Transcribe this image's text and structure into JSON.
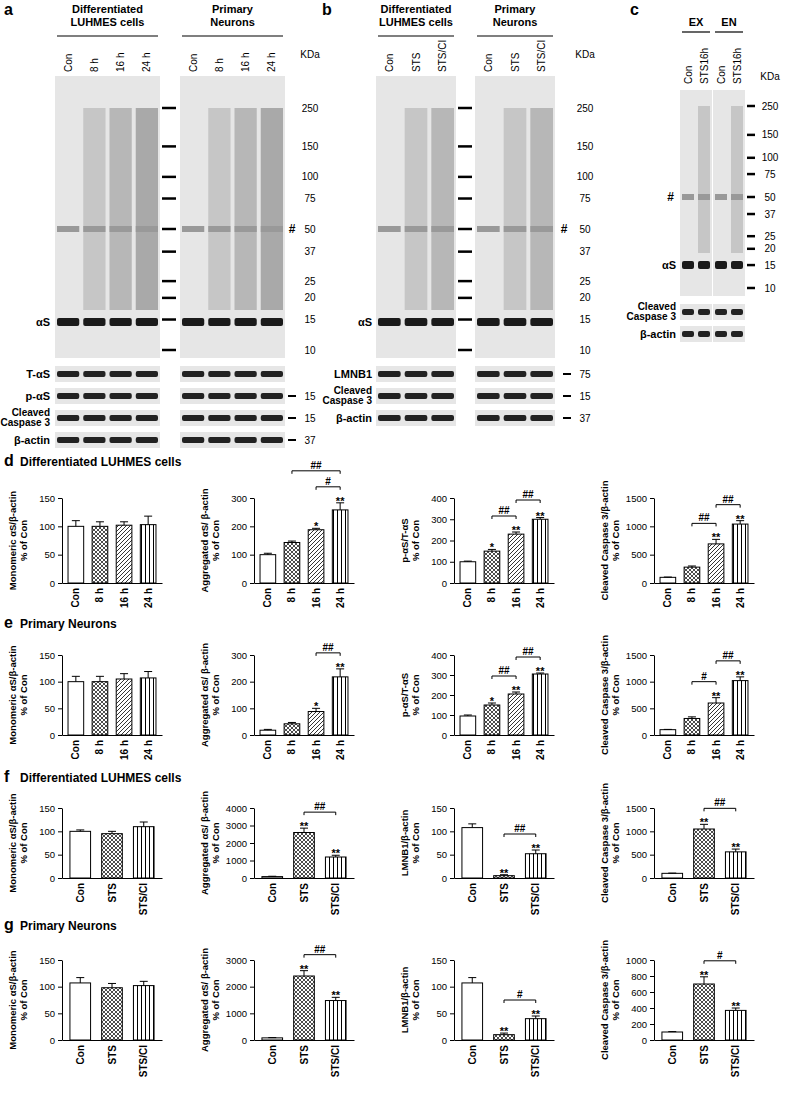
{
  "blots": [
    {
      "label": "a",
      "groups": [
        {
          "title": [
            "Differentiated",
            "LUHMES cells"
          ],
          "lanes": [
            "Con",
            "8 h",
            "16 h",
            "24 h"
          ]
        },
        {
          "title": [
            "Primary",
            "Neurons"
          ],
          "lanes": [
            "Con",
            "8 h",
            "16 h",
            "24 h"
          ]
        }
      ],
      "unit": "KDa",
      "markers": [
        250,
        150,
        100,
        75,
        50,
        37,
        25,
        20,
        15,
        10
      ],
      "hash": "#",
      "band": "αS",
      "strips": [
        {
          "label": [
            "T-αS"
          ]
        },
        {
          "label": [
            "p-αS"
          ],
          "size": 15
        },
        {
          "label": [
            "Cleaved",
            "Caspase 3"
          ],
          "size": 15
        },
        {
          "label": [
            "β-actin"
          ],
          "size": 37
        }
      ]
    },
    {
      "label": "b",
      "groups": [
        {
          "title": [
            "Differentiated",
            "LUHMES cells"
          ],
          "lanes": [
            "Con",
            "STS",
            "STS/CI"
          ]
        },
        {
          "title": [
            "Primary",
            "Neurons"
          ],
          "lanes": [
            "Con",
            "STS",
            "STS/CI"
          ]
        }
      ],
      "unit": "KDa",
      "markers": [
        250,
        150,
        100,
        75,
        50,
        37,
        25,
        20,
        15,
        10
      ],
      "hash": "#",
      "band": "αS",
      "strips": [
        {
          "label": [
            "LMNB1"
          ],
          "size": 75
        },
        {
          "label": [
            "Cleaved",
            "Caspase 3"
          ],
          "size": 15
        },
        {
          "label": [
            "β-actin"
          ],
          "size": 37
        }
      ]
    },
    {
      "label": "c",
      "groups": [
        {
          "title": [
            "EX"
          ],
          "lanes": [
            "Con",
            "STS16h"
          ]
        },
        {
          "title": [
            "EN"
          ],
          "lanes": [
            "Con",
            "STS16h"
          ]
        }
      ],
      "unit": "KDa",
      "markers": [
        250,
        150,
        100,
        75,
        50,
        37,
        25,
        20,
        15,
        10
      ],
      "hash": "#",
      "band": "αS",
      "strips": [
        {
          "label": [
            "Cleaved",
            "Caspase 3"
          ]
        },
        {
          "label": [
            "β-actin"
          ]
        }
      ]
    }
  ],
  "figure": {
    "rows": [
      {
        "label": "d",
        "title": "Differentiated LUHMES cells"
      },
      {
        "label": "e",
        "title": "Primary Neurons"
      },
      {
        "label": "f",
        "title": "Differentiated LUHMES cells"
      },
      {
        "label": "g",
        "title": "Primary Neurons"
      }
    ]
  },
  "chart_data": [
    {
      "type": "bar",
      "categories": [
        "Con",
        "8 h",
        "16 h",
        "24 h"
      ],
      "values": [
        100,
        100,
        102,
        103
      ],
      "errors": [
        10,
        8,
        6,
        15
      ],
      "y_label": [
        "Monomeric αS/β-actin",
        "% of Con"
      ],
      "ylim": [
        0,
        150
      ],
      "yticks": [
        0,
        50,
        100,
        150
      ],
      "color": "#000000"
    },
    {
      "type": "bar",
      "categories": [
        "Con",
        "8 h",
        "16 h",
        "24 h"
      ],
      "values": [
        100,
        143,
        188,
        258
      ],
      "errors": [
        5,
        5,
        5,
        25
      ],
      "stars": [
        null,
        null,
        "*",
        "**"
      ],
      "comparisons": [
        {
          "between": [
            "16 h",
            "24 h"
          ],
          "label": "#"
        },
        {
          "between": [
            "8 h",
            "24 h"
          ],
          "label": "##"
        }
      ],
      "y_label": [
        "Aggregated αS/ β-actin",
        "% of Con"
      ],
      "ylim": [
        0,
        300
      ],
      "yticks": [
        0,
        100,
        200,
        300
      ],
      "color": "#000000"
    },
    {
      "type": "bar",
      "categories": [
        "Con",
        "8 h",
        "16 h",
        "24 h"
      ],
      "values": [
        100,
        150,
        230,
        300
      ],
      "errors": [
        3,
        8,
        10,
        8
      ],
      "stars": [
        null,
        "*",
        "**",
        "**"
      ],
      "comparisons": [
        {
          "between": [
            "8 h",
            "16 h"
          ],
          "label": "##"
        },
        {
          "between": [
            "16 h",
            "24 h"
          ],
          "label": "##"
        }
      ],
      "y_label": [
        "p-αS/T-αS",
        "% of Con"
      ],
      "ylim": [
        0,
        400
      ],
      "yticks": [
        0,
        100,
        200,
        300,
        400
      ],
      "color": "#000000"
    },
    {
      "type": "bar",
      "categories": [
        "Con",
        "8 h",
        "16 h",
        "24 h"
      ],
      "values": [
        100,
        280,
        690,
        1040
      ],
      "errors": [
        5,
        20,
        80,
        60
      ],
      "stars": [
        null,
        null,
        "**",
        "**"
      ],
      "comparisons": [
        {
          "between": [
            "8 h",
            "16 h"
          ],
          "label": "##"
        },
        {
          "between": [
            "16 h",
            "24 h"
          ],
          "label": "##"
        }
      ],
      "y_label": [
        "Cleaved Caspase 3/β-actin",
        "% of Con"
      ],
      "ylim": [
        0,
        1500
      ],
      "yticks": [
        0,
        500,
        1000,
        1500
      ],
      "color": "#000000"
    },
    {
      "type": "bar",
      "categories": [
        "Con",
        "8 h",
        "16 h",
        "24 h"
      ],
      "values": [
        100,
        100,
        105,
        107
      ],
      "errors": [
        10,
        10,
        10,
        12
      ],
      "y_label": [
        "Monomeric αS/β-actin",
        "% of Con"
      ],
      "ylim": [
        0,
        150
      ],
      "yticks": [
        0,
        50,
        100,
        150
      ],
      "color": "#000000"
    },
    {
      "type": "bar",
      "categories": [
        "Con",
        "8 h",
        "16 h",
        "24 h"
      ],
      "values": [
        18,
        42,
        88,
        218
      ],
      "errors": [
        3,
        5,
        12,
        30
      ],
      "stars": [
        null,
        null,
        "*",
        "**"
      ],
      "comparisons": [
        {
          "between": [
            "16 h",
            "24 h"
          ],
          "label": "##"
        }
      ],
      "y_label": [
        "Aggregated αS/ β-actin",
        "% of Con"
      ],
      "ylim": [
        0,
        300
      ],
      "yticks": [
        0,
        100,
        200,
        300
      ],
      "color": "#000000"
    },
    {
      "type": "bar",
      "categories": [
        "Con",
        "8 h",
        "16 h",
        "24 h"
      ],
      "values": [
        95,
        150,
        205,
        305
      ],
      "errors": [
        5,
        10,
        10,
        5
      ],
      "stars": [
        null,
        "*",
        "**",
        "**"
      ],
      "comparisons": [
        {
          "between": [
            "8 h",
            "16 h"
          ],
          "label": "##"
        },
        {
          "between": [
            "16 h",
            "24 h"
          ],
          "label": "##"
        }
      ],
      "y_label": [
        "p-αS/T-αS",
        "% of Con"
      ],
      "ylim": [
        0,
        400
      ],
      "yticks": [
        0,
        100,
        200,
        300,
        400
      ],
      "color": "#000000"
    },
    {
      "type": "bar",
      "categories": [
        "Con",
        "8 h",
        "16 h",
        "24 h"
      ],
      "values": [
        100,
        310,
        600,
        1020
      ],
      "errors": [
        5,
        30,
        100,
        70
      ],
      "stars": [
        null,
        null,
        "**",
        "**"
      ],
      "comparisons": [
        {
          "between": [
            "8 h",
            "16 h"
          ],
          "label": "#"
        },
        {
          "between": [
            "16 h",
            "24 h"
          ],
          "label": "##"
        }
      ],
      "y_label": [
        "Cleaved Caspase 3/β-actin",
        "% of Con"
      ],
      "ylim": [
        0,
        1500
      ],
      "yticks": [
        0,
        500,
        1000,
        1500
      ],
      "color": "#000000"
    },
    {
      "type": "bar",
      "categories": [
        "Con",
        "STS",
        "STS/CI"
      ],
      "values": [
        100,
        95,
        110
      ],
      "errors": [
        3,
        5,
        10
      ],
      "y_label": [
        "Monomeric αS/β-actin",
        "% of Con"
      ],
      "ylim": [
        0,
        150
      ],
      "yticks": [
        0,
        50,
        100,
        150
      ],
      "color": "#000000"
    },
    {
      "type": "bar",
      "categories": [
        "Con",
        "STS",
        "STS/CI"
      ],
      "values": [
        80,
        2600,
        1200
      ],
      "errors": [
        20,
        250,
        100
      ],
      "stars": [
        null,
        "**",
        "**"
      ],
      "comparisons": [
        {
          "between": [
            "STS",
            "STS/CI"
          ],
          "label": "##"
        }
      ],
      "y_label": [
        "Aggregated αS/ β-actin",
        "% of Con"
      ],
      "ylim": [
        0,
        4000
      ],
      "yticks": [
        0,
        1000,
        2000,
        3000,
        4000
      ],
      "color": "#000000"
    },
    {
      "type": "bar",
      "categories": [
        "Con",
        "STS",
        "STS/CI"
      ],
      "values": [
        108,
        5,
        52
      ],
      "errors": [
        8,
        2,
        8
      ],
      "stars": [
        null,
        "**",
        "**"
      ],
      "comparisons": [
        {
          "between": [
            "STS",
            "STS/CI"
          ],
          "label": "##"
        }
      ],
      "y_label": [
        "LMNB1/β-actin",
        "% of Con"
      ],
      "ylim": [
        0,
        150
      ],
      "yticks": [
        0,
        50,
        100,
        150
      ],
      "color": "#000000"
    },
    {
      "type": "bar",
      "categories": [
        "Con",
        "STS",
        "STS/CI"
      ],
      "values": [
        100,
        1050,
        560
      ],
      "errors": [
        5,
        100,
        60
      ],
      "stars": [
        null,
        "**",
        "**"
      ],
      "comparisons": [
        {
          "between": [
            "STS",
            "STS/CI"
          ],
          "label": "##"
        }
      ],
      "y_label": [
        "Cleaved Caspase 3/β-actin",
        "% of Con"
      ],
      "ylim": [
        0,
        1500
      ],
      "yticks": [
        0,
        500,
        1000,
        1500
      ],
      "color": "#000000"
    },
    {
      "type": "bar",
      "categories": [
        "Con",
        "STS",
        "STS/CI"
      ],
      "values": [
        107,
        98,
        102
      ],
      "errors": [
        10,
        8,
        8
      ],
      "y_label": [
        "Monomeric αS/β-actin",
        "% of Con"
      ],
      "ylim": [
        0,
        150
      ],
      "yticks": [
        0,
        50,
        100,
        150
      ],
      "color": "#000000"
    },
    {
      "type": "bar",
      "categories": [
        "Con",
        "STS",
        "STS/CI"
      ],
      "values": [
        80,
        2400,
        1480
      ],
      "errors": [
        10,
        200,
        120
      ],
      "stars": [
        null,
        "**",
        "**"
      ],
      "comparisons": [
        {
          "between": [
            "STS",
            "STS/CI"
          ],
          "label": "##"
        }
      ],
      "y_label": [
        "Aggregated αS/ β-actin",
        "% of Con"
      ],
      "ylim": [
        0,
        3000
      ],
      "yticks": [
        0,
        1000,
        2000,
        3000
      ],
      "color": "#000000"
    },
    {
      "type": "bar",
      "categories": [
        "Con",
        "STS",
        "STS/CI"
      ],
      "values": [
        107,
        10,
        40
      ],
      "errors": [
        10,
        3,
        5
      ],
      "stars": [
        null,
        "**",
        "**"
      ],
      "comparisons": [
        {
          "between": [
            "STS",
            "STS/CI"
          ],
          "label": "#"
        }
      ],
      "y_label": [
        "LMNB1/β-actin",
        "% of Con"
      ],
      "ylim": [
        0,
        150
      ],
      "yticks": [
        0,
        50,
        100,
        150
      ],
      "color": "#000000"
    },
    {
      "type": "bar",
      "categories": [
        "Con",
        "STS",
        "STS/CI"
      ],
      "values": [
        100,
        700,
        370
      ],
      "errors": [
        5,
        90,
        30
      ],
      "stars": [
        null,
        "**",
        "**"
      ],
      "comparisons": [
        {
          "between": [
            "STS",
            "STS/CI"
          ],
          "label": "#"
        }
      ],
      "y_label": [
        "Cleaved Caspase 3/β-actin",
        "% of Con"
      ],
      "ylim": [
        0,
        1000
      ],
      "yticks": [
        0,
        200,
        400,
        600,
        800,
        1000
      ],
      "color": "#000000"
    }
  ]
}
